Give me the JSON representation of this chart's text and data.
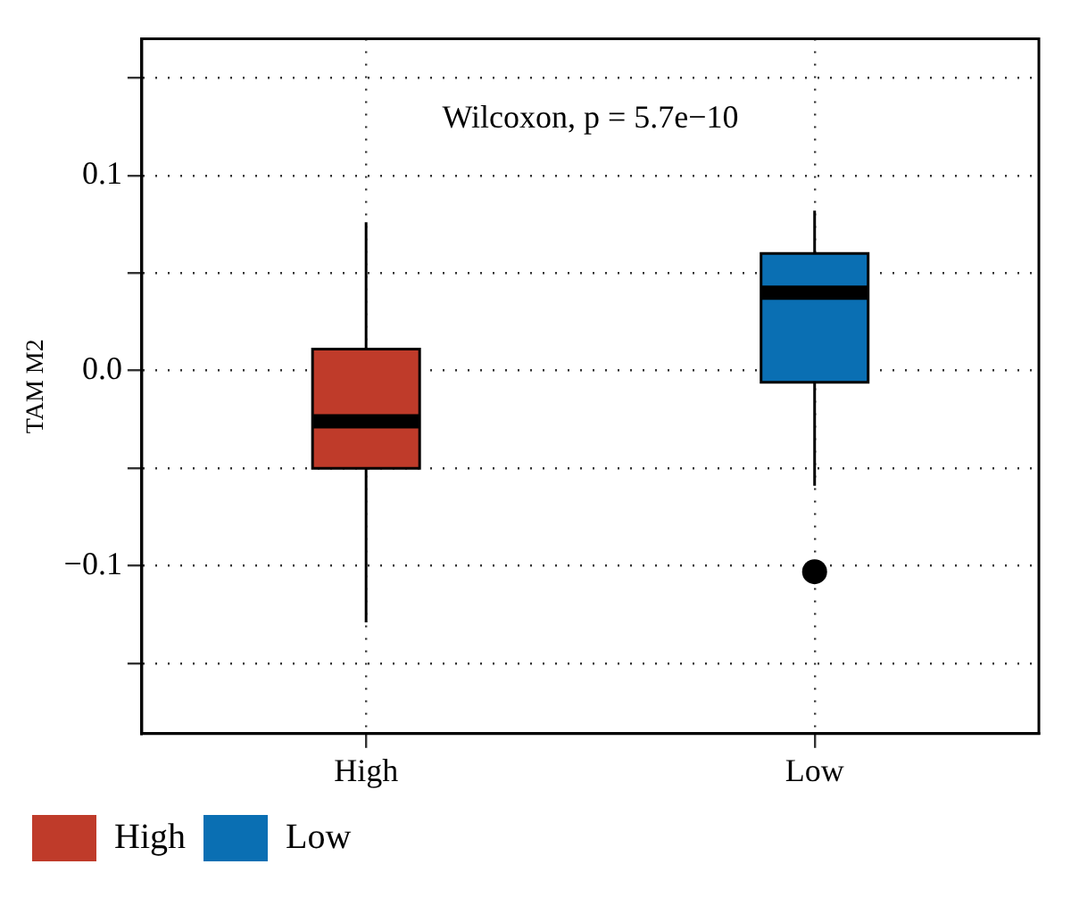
{
  "chart_data": {
    "type": "box",
    "ylabel": "TAM M2",
    "categories": [
      "High",
      "Low"
    ],
    "series": [
      {
        "name": "High",
        "color": "#bf3b2a",
        "boxes": [
          {
            "low": -0.129,
            "q1": -0.05,
            "median": -0.026,
            "q3": 0.011,
            "high": 0.076
          },
          null
        ]
      },
      {
        "name": "Low",
        "color": "#0a6fb3",
        "boxes": [
          null,
          {
            "low": -0.059,
            "q1": -0.006,
            "median": 0.04,
            "q3": 0.06,
            "high": 0.082,
            "outliers": [
              -0.103
            ]
          }
        ]
      }
    ],
    "ylim": [
      -0.186,
      0.17
    ],
    "yticks": [
      {
        "value": -0.15,
        "label": null
      },
      {
        "value": -0.1,
        "label": "−0.1"
      },
      {
        "value": -0.05,
        "label": null
      },
      {
        "value": 0.0,
        "label": "0.0"
      },
      {
        "value": 0.05,
        "label": null
      },
      {
        "value": 0.1,
        "label": "0.1"
      },
      {
        "value": 0.15,
        "label": null
      }
    ],
    "annotations": [
      "Wilcoxon, p = 5.7e−10"
    ],
    "grid": true,
    "legend": "bottom"
  }
}
